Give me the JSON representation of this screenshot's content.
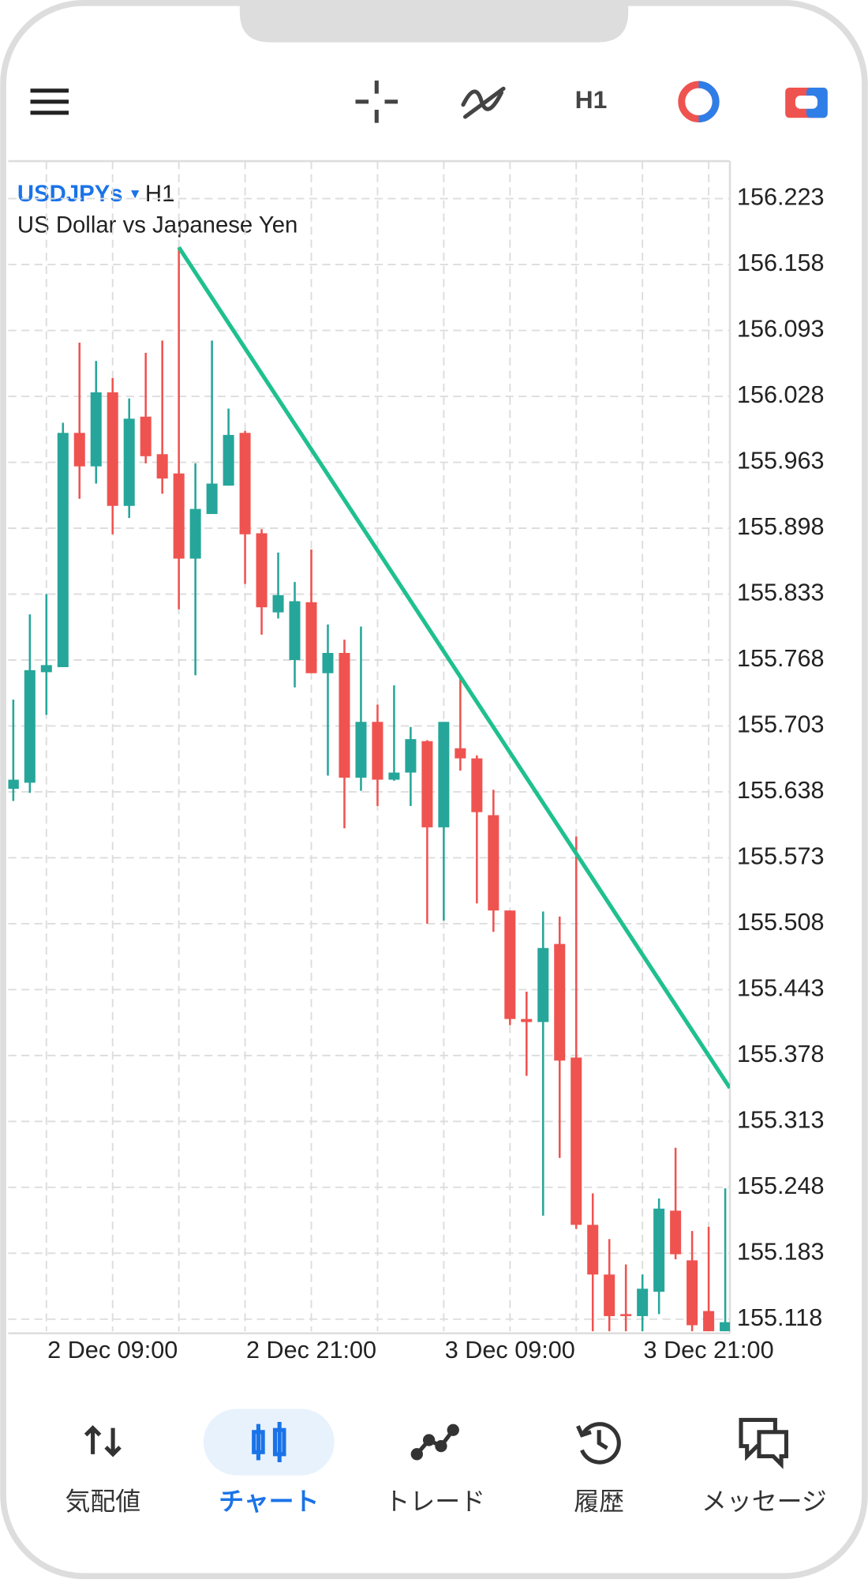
{
  "toolbar": {
    "timeframe": "H1"
  },
  "chart_data": {
    "type": "candlestick",
    "symbol": "USDJPYs",
    "timeframe": "H1",
    "subtitle": "US Dollar vs Japanese Yen",
    "categories": [
      null,
      null,
      null,
      null,
      null,
      null,
      "2 Dec 09:00",
      null,
      null,
      null,
      null,
      null,
      null,
      null,
      null,
      null,
      null,
      null,
      "2 Dec 21:00",
      null,
      null,
      null,
      null,
      null,
      null,
      null,
      null,
      null,
      null,
      null,
      "3 Dec 09:00",
      null,
      null,
      null,
      null,
      null,
      null,
      null,
      null,
      null,
      null,
      null,
      "3 Dec 21:00",
      null
    ],
    "open": [
      155.641,
      155.647,
      155.756,
      155.761,
      155.992,
      155.959,
      156.032,
      155.92,
      156.008,
      155.971,
      155.952,
      155.868,
      155.912,
      155.94,
      155.992,
      155.893,
      155.815,
      155.768,
      155.825,
      155.755,
      155.775,
      155.652,
      155.707,
      155.65,
      155.657,
      155.688,
      155.603,
      155.681,
      155.671,
      155.615,
      155.521,
      155.414,
      155.411,
      155.488,
      155.376,
      155.211,
      155.162,
      155.123,
      155.121,
      155.145,
      155.225,
      155.176,
      155.126,
      155.106
    ],
    "high": [
      155.729,
      155.813,
      155.833,
      156.002,
      156.081,
      156.063,
      156.046,
      156.026,
      156.071,
      156.083,
      156.175,
      155.962,
      156.083,
      156.016,
      155.994,
      155.897,
      155.874,
      155.845,
      155.877,
      155.803,
      155.788,
      155.801,
      155.724,
      155.743,
      155.702,
      155.689,
      155.707,
      155.751,
      155.674,
      155.64,
      155.521,
      155.441,
      155.52,
      155.515,
      155.594,
      155.242,
      155.197,
      155.172,
      155.162,
      155.237,
      155.287,
      155.205,
      155.209,
      155.247
    ],
    "low": [
      155.629,
      155.637,
      155.714,
      155.761,
      155.927,
      155.942,
      155.892,
      155.908,
      155.962,
      155.932,
      155.818,
      155.753,
      155.912,
      155.94,
      155.843,
      155.793,
      155.809,
      155.741,
      155.755,
      155.654,
      155.602,
      155.639,
      155.624,
      155.649,
      155.624,
      155.508,
      155.511,
      155.659,
      155.528,
      155.5,
      155.408,
      155.358,
      155.22,
      155.277,
      155.207,
      155.106,
      155.106,
      155.106,
      155.106,
      155.123,
      155.177,
      155.106,
      155.106,
      155.106
    ],
    "close": [
      155.65,
      155.758,
      155.763,
      155.992,
      155.959,
      156.032,
      155.92,
      156.006,
      155.969,
      155.947,
      155.868,
      155.917,
      155.942,
      155.99,
      155.892,
      155.82,
      155.832,
      155.826,
      155.755,
      155.775,
      155.652,
      155.707,
      155.65,
      155.657,
      155.69,
      155.603,
      155.707,
      155.671,
      155.618,
      155.521,
      155.414,
      155.411,
      155.484,
      155.373,
      155.211,
      155.162,
      155.121,
      155.121,
      155.148,
      155.227,
      155.182,
      155.112,
      155.106,
      155.115
    ],
    "up_color": "#26a69a",
    "down_color": "#ef5350",
    "ylim": [
      155.106,
      156.26
    ],
    "yticks": [
      156.223,
      156.158,
      156.093,
      156.028,
      155.963,
      155.898,
      155.833,
      155.768,
      155.703,
      155.638,
      155.573,
      155.508,
      155.443,
      155.378,
      155.313,
      155.248,
      155.183,
      155.118
    ],
    "grid": true,
    "trendline": {
      "x": [
        10,
        43.28
      ],
      "y": [
        156.175,
        155.346
      ],
      "color": "#1fc08e"
    }
  },
  "nav": {
    "items": [
      {
        "label": "気配値"
      },
      {
        "label": "チャート"
      },
      {
        "label": "トレード"
      },
      {
        "label": "履歴"
      },
      {
        "label": "メッセージ"
      }
    ],
    "active": 1
  }
}
